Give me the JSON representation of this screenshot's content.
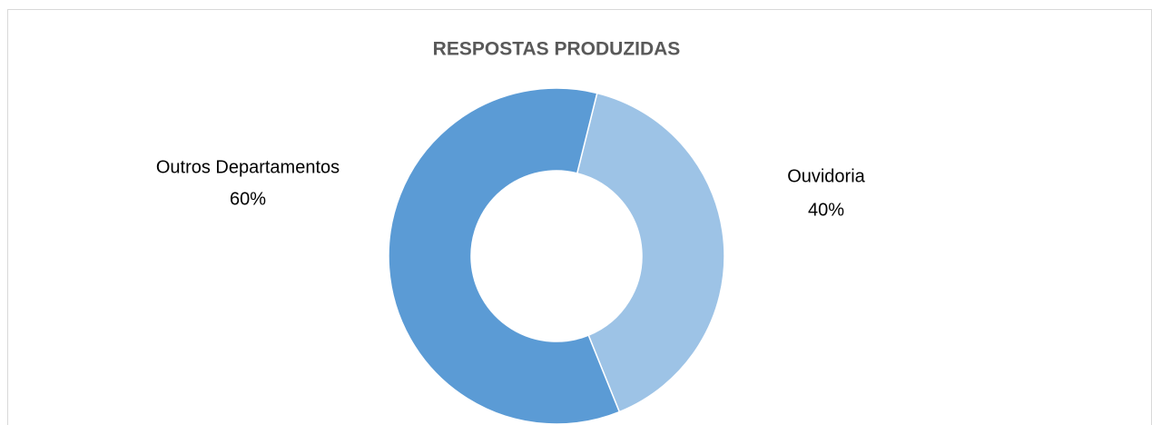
{
  "chart_data": {
    "type": "donut",
    "title": "RESPOSTAS PRODUZIDAS",
    "categories": [
      "Ouvidoria",
      "Outros Departamentos"
    ],
    "values": [
      40,
      60
    ],
    "value_labels": [
      "40%",
      "60%"
    ],
    "colors": [
      "#9dc3e6",
      "#5b9bd5"
    ]
  }
}
